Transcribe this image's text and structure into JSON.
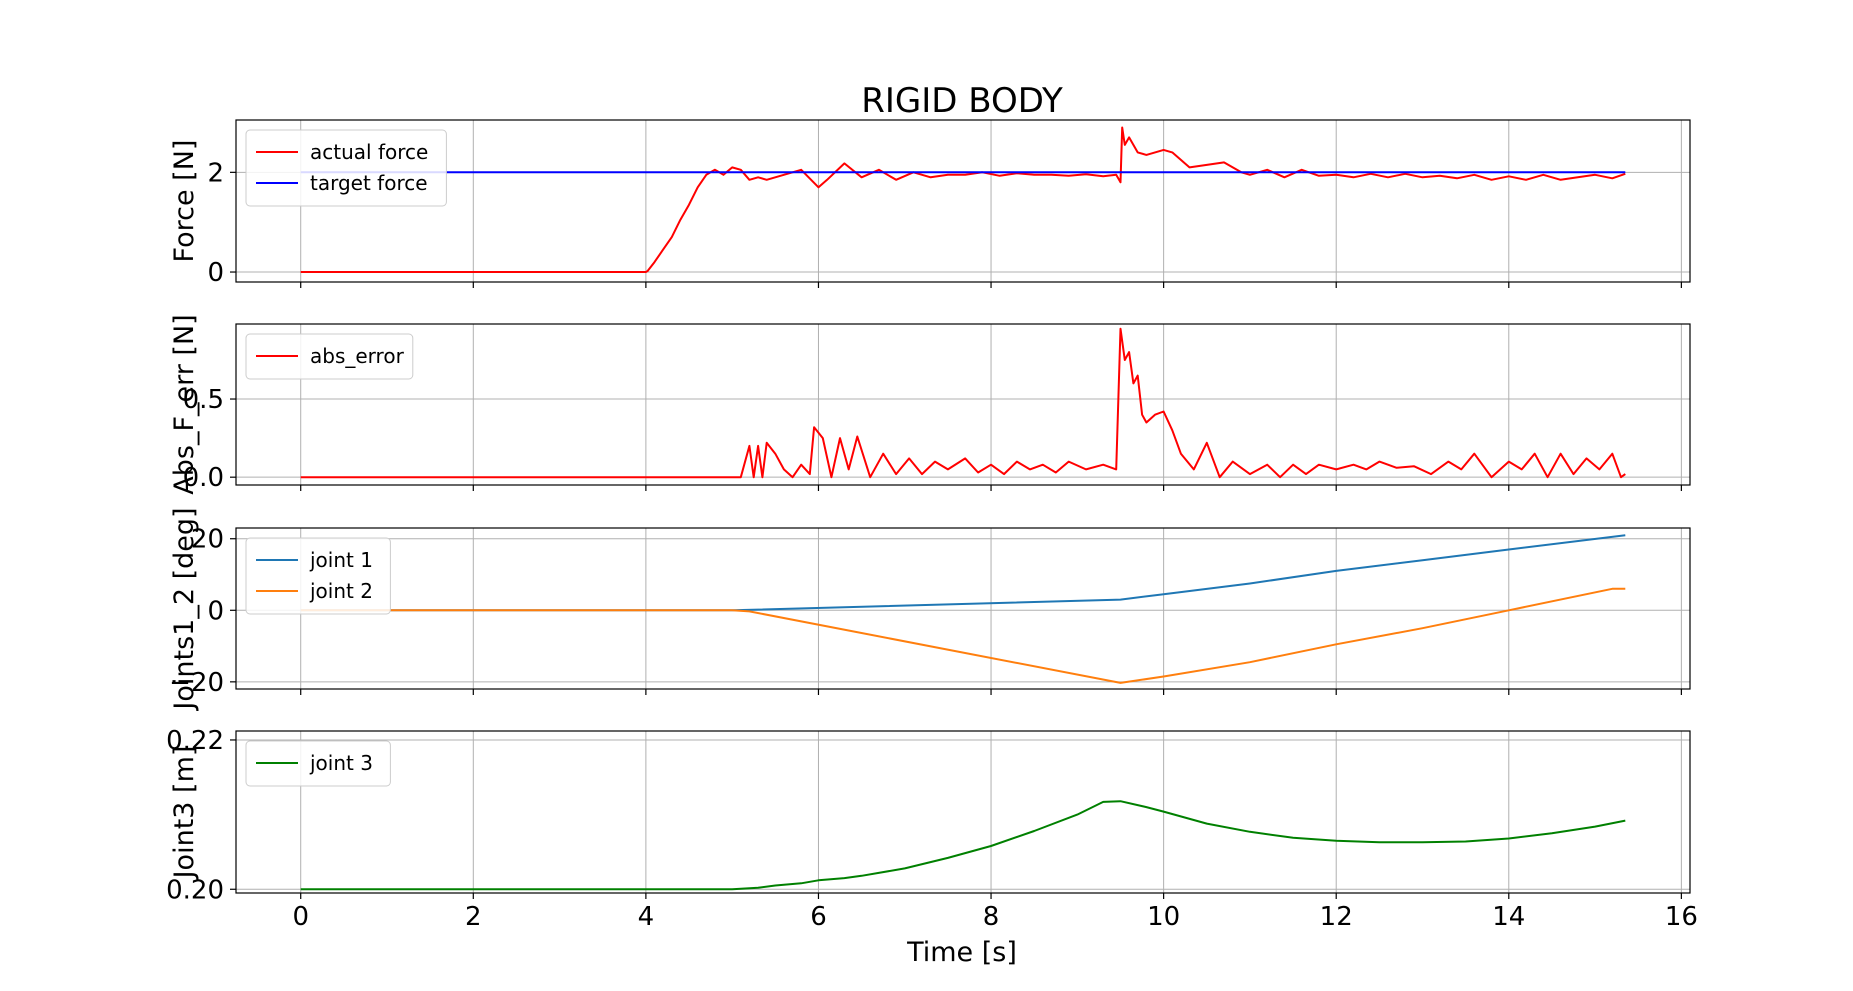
{
  "figure": {
    "title": "RIGID BODY",
    "xlabel": "Time [s]"
  },
  "colors": {
    "red": "#ff0000",
    "blue": "#0000ff",
    "tab_blue": "#1f77b4",
    "tab_orange": "#ff7f0e",
    "green": "#008000",
    "grid": "#b0b0b0"
  },
  "chart_data": [
    {
      "type": "line",
      "ylabel": "Force [N]",
      "xlim": [
        -0.75,
        16.1
      ],
      "ylim": [
        -0.2,
        3.05
      ],
      "xticks": [
        0,
        2,
        4,
        6,
        8,
        10,
        12,
        14,
        16
      ],
      "yticks": [
        0,
        2
      ],
      "ytick_labels": [
        "0",
        "2"
      ],
      "grid": true,
      "legend": "upper left",
      "series": [
        {
          "name": "actual force",
          "color": "#ff0000",
          "x": [
            0,
            1,
            2,
            3,
            4,
            4.02,
            4.1,
            4.2,
            4.3,
            4.4,
            4.5,
            4.6,
            4.7,
            4.8,
            4.9,
            5.0,
            5.1,
            5.2,
            5.3,
            5.4,
            5.6,
            5.8,
            6.0,
            6.1,
            6.3,
            6.5,
            6.7,
            6.9,
            7.1,
            7.3,
            7.5,
            7.7,
            7.9,
            8.1,
            8.3,
            8.5,
            8.7,
            8.9,
            9.1,
            9.3,
            9.45,
            9.5,
            9.52,
            9.55,
            9.6,
            9.7,
            9.8,
            9.9,
            10.0,
            10.1,
            10.2,
            10.3,
            10.5,
            10.7,
            10.9,
            11.0,
            11.2,
            11.4,
            11.6,
            11.8,
            12.0,
            12.2,
            12.4,
            12.6,
            12.8,
            13.0,
            13.2,
            13.4,
            13.6,
            13.8,
            14.0,
            14.2,
            14.4,
            14.6,
            14.8,
            15.0,
            15.2,
            15.35
          ],
          "y": [
            0,
            0,
            0,
            0,
            0,
            0.02,
            0.2,
            0.45,
            0.7,
            1.05,
            1.35,
            1.7,
            1.95,
            2.05,
            1.95,
            2.1,
            2.05,
            1.85,
            1.9,
            1.85,
            1.95,
            2.05,
            1.7,
            1.85,
            2.18,
            1.9,
            2.05,
            1.85,
            2.0,
            1.9,
            1.95,
            1.95,
            2.0,
            1.93,
            1.98,
            1.95,
            1.95,
            1.93,
            1.96,
            1.92,
            1.95,
            1.8,
            2.9,
            2.55,
            2.7,
            2.4,
            2.35,
            2.4,
            2.45,
            2.4,
            2.25,
            2.1,
            2.15,
            2.2,
            2.0,
            1.95,
            2.05,
            1.9,
            2.05,
            1.93,
            1.95,
            1.9,
            1.97,
            1.9,
            1.97,
            1.9,
            1.93,
            1.88,
            1.95,
            1.85,
            1.92,
            1.85,
            1.95,
            1.85,
            1.9,
            1.95,
            1.88,
            1.97
          ]
        },
        {
          "name": "target force",
          "color": "#0000ff",
          "x": [
            0,
            15.35
          ],
          "y": [
            2,
            2
          ]
        }
      ]
    },
    {
      "type": "line",
      "ylabel": "Abs_F_err [N]",
      "xlim": [
        -0.75,
        16.1
      ],
      "ylim": [
        -0.05,
        0.98
      ],
      "xticks": [
        0,
        2,
        4,
        6,
        8,
        10,
        12,
        14,
        16
      ],
      "yticks": [
        0.0,
        0.5
      ],
      "ytick_labels": [
        "0.0",
        "0.5"
      ],
      "grid": true,
      "legend": "upper left",
      "series": [
        {
          "name": "abs_error",
          "color": "#ff0000",
          "x": [
            0,
            2,
            4,
            5.1,
            5.2,
            5.25,
            5.3,
            5.35,
            5.4,
            5.5,
            5.6,
            5.7,
            5.8,
            5.9,
            5.95,
            6.05,
            6.15,
            6.25,
            6.35,
            6.45,
            6.6,
            6.75,
            6.9,
            7.05,
            7.2,
            7.35,
            7.5,
            7.7,
            7.85,
            8.0,
            8.15,
            8.3,
            8.45,
            8.6,
            8.75,
            8.9,
            9.1,
            9.3,
            9.45,
            9.5,
            9.55,
            9.6,
            9.65,
            9.7,
            9.75,
            9.8,
            9.9,
            10.0,
            10.1,
            10.2,
            10.35,
            10.5,
            10.65,
            10.8,
            11.0,
            11.2,
            11.35,
            11.5,
            11.65,
            11.8,
            12.0,
            12.2,
            12.35,
            12.5,
            12.7,
            12.9,
            13.1,
            13.3,
            13.45,
            13.6,
            13.8,
            14.0,
            14.15,
            14.3,
            14.45,
            14.6,
            14.75,
            14.9,
            15.05,
            15.2,
            15.3,
            15.35
          ],
          "y": [
            0,
            0,
            0,
            0,
            0.2,
            0.0,
            0.2,
            0.0,
            0.22,
            0.15,
            0.05,
            0.0,
            0.08,
            0.02,
            0.32,
            0.25,
            0.0,
            0.25,
            0.05,
            0.26,
            0.0,
            0.15,
            0.02,
            0.12,
            0.02,
            0.1,
            0.05,
            0.12,
            0.03,
            0.08,
            0.02,
            0.1,
            0.05,
            0.08,
            0.03,
            0.1,
            0.05,
            0.08,
            0.05,
            0.95,
            0.75,
            0.8,
            0.6,
            0.65,
            0.4,
            0.35,
            0.4,
            0.42,
            0.3,
            0.15,
            0.05,
            0.22,
            0.0,
            0.1,
            0.02,
            0.08,
            0.0,
            0.08,
            0.02,
            0.08,
            0.05,
            0.08,
            0.05,
            0.1,
            0.06,
            0.07,
            0.02,
            0.1,
            0.05,
            0.15,
            0.0,
            0.1,
            0.05,
            0.15,
            0.0,
            0.15,
            0.02,
            0.12,
            0.05,
            0.15,
            0.0,
            0.02
          ]
        }
      ]
    },
    {
      "type": "line",
      "ylabel": "Joints1_2 [deg]",
      "xlim": [
        -0.75,
        16.1
      ],
      "ylim": [
        -22,
        23
      ],
      "xticks": [
        0,
        2,
        4,
        6,
        8,
        10,
        12,
        14,
        16
      ],
      "yticks": [
        -20,
        0,
        20
      ],
      "ytick_labels": [
        "−20",
        "0",
        "20"
      ],
      "grid": true,
      "legend": "upper left",
      "series": [
        {
          "name": "joint 1",
          "color": "#1f77b4",
          "x": [
            0,
            5.0,
            5.3,
            9.5,
            10.0,
            11.0,
            12.0,
            13.0,
            14.0,
            15.35
          ],
          "y": [
            0,
            0,
            0.2,
            3.0,
            4.5,
            7.5,
            11.0,
            14.0,
            17.0,
            21.0
          ]
        },
        {
          "name": "joint 2",
          "color": "#ff7f0e",
          "x": [
            0,
            5.0,
            5.2,
            9.5,
            10.0,
            11.0,
            12.0,
            13.0,
            14.0,
            15.2,
            15.35
          ],
          "y": [
            0,
            0,
            -0.3,
            -20.3,
            -18.5,
            -14.5,
            -9.5,
            -5.0,
            0.0,
            6.0,
            6.0
          ]
        }
      ]
    },
    {
      "type": "line",
      "ylabel": "Joint3 [m]",
      "xlim": [
        -0.75,
        16.1
      ],
      "ylim": [
        0.1995,
        0.2212
      ],
      "xticks": [
        0,
        2,
        4,
        6,
        8,
        10,
        12,
        14,
        16
      ],
      "yticks": [
        0.2,
        0.22
      ],
      "ytick_labels": [
        "0.20",
        "0.22"
      ],
      "grid": true,
      "legend": "upper left",
      "series": [
        {
          "name": "joint 3",
          "color": "#008000",
          "x": [
            0,
            2,
            4,
            5.0,
            5.3,
            5.5,
            5.8,
            6.0,
            6.3,
            6.5,
            7.0,
            7.5,
            8.0,
            8.5,
            9.0,
            9.3,
            9.5,
            9.8,
            10.0,
            10.5,
            11.0,
            11.5,
            12.0,
            12.5,
            13.0,
            13.5,
            14.0,
            14.5,
            15.0,
            15.35
          ],
          "y": [
            0.2,
            0.2,
            0.2,
            0.2,
            0.2002,
            0.2005,
            0.2008,
            0.2012,
            0.2015,
            0.2018,
            0.2028,
            0.2042,
            0.2058,
            0.2078,
            0.21,
            0.2117,
            0.2118,
            0.211,
            0.2104,
            0.2088,
            0.2077,
            0.2069,
            0.2065,
            0.2063,
            0.2063,
            0.2064,
            0.2068,
            0.2075,
            0.2084,
            0.2092
          ]
        }
      ]
    }
  ]
}
